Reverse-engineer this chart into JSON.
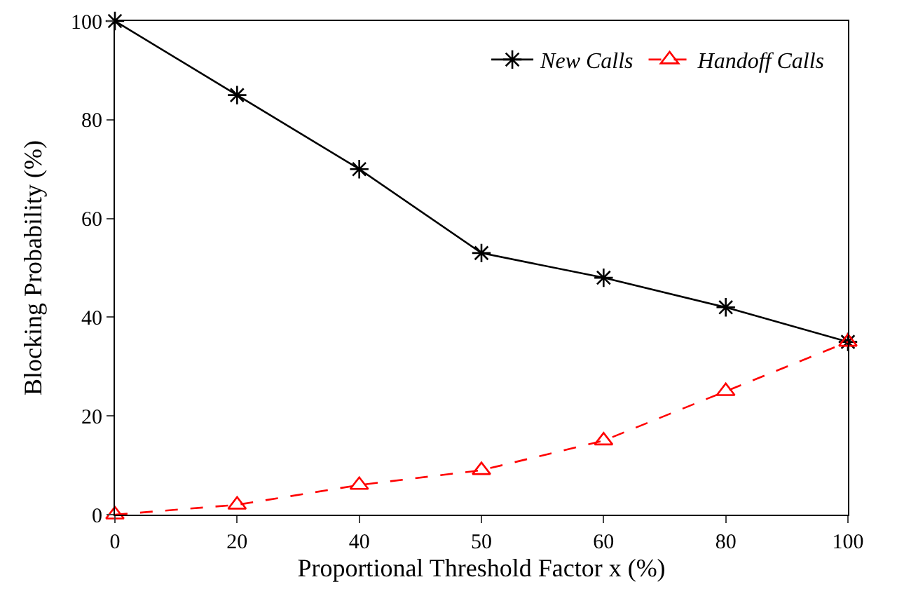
{
  "chart_data": {
    "type": "line",
    "xlabel": "Proportional Threshold Factor x (%)",
    "ylabel": "Blocking Probability (%)",
    "categories": [
      "0",
      "20",
      "40",
      "50",
      "60",
      "80",
      "100"
    ],
    "series": [
      {
        "name": "New Calls",
        "color": "#000000",
        "values": [
          100,
          85,
          70,
          53,
          48,
          42,
          35
        ],
        "marker": "cross",
        "line_style": "solid"
      },
      {
        "name": "Handoff Calls",
        "color": "#ff0000",
        "values": [
          0,
          2,
          6,
          9,
          15,
          25,
          35
        ],
        "marker": "triangle",
        "line_style": "dashed"
      }
    ],
    "ylim": [
      0,
      100
    ],
    "yticks": [
      0,
      20,
      40,
      60,
      80,
      100
    ],
    "legend": "top right"
  }
}
